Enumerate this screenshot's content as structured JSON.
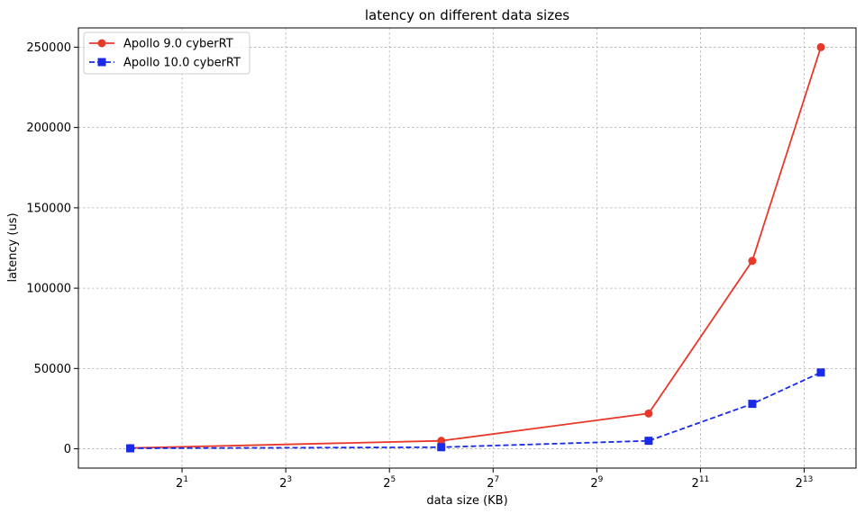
{
  "chart_data": {
    "type": "line",
    "title": "latency on different data sizes",
    "xlabel": "data size (KB)",
    "ylabel": "latency (us)",
    "x_scale": "log2",
    "x_ticks": [
      2,
      8,
      32,
      128,
      512,
      2048,
      8192
    ],
    "x_tick_labels": [
      {
        "base": "2",
        "exp": "1"
      },
      {
        "base": "2",
        "exp": "3"
      },
      {
        "base": "2",
        "exp": "5"
      },
      {
        "base": "2",
        "exp": "7"
      },
      {
        "base": "2",
        "exp": "9"
      },
      {
        "base": "2",
        "exp": "11"
      },
      {
        "base": "2",
        "exp": "13"
      }
    ],
    "y_ticks": [
      0,
      50000,
      100000,
      150000,
      200000,
      250000
    ],
    "y_tick_labels": [
      "0",
      "50000",
      "100000",
      "150000",
      "200000",
      "250000"
    ],
    "ylim": [
      -12000,
      262000
    ],
    "xlim": [
      0.5,
      16384
    ],
    "grid": true,
    "legend_position": "top-left",
    "x": [
      1,
      64,
      1024,
      4096,
      10240
    ],
    "series": [
      {
        "name": "Apollo 9.0 cyberRT",
        "color": "#e8382a",
        "line_style": "solid",
        "marker": "circle",
        "values": [
          500,
          5000,
          22000,
          117000,
          250000
        ]
      },
      {
        "name": "Apollo 10.0 cyberRT",
        "color": "#1a2be8",
        "line_style": "dashed",
        "marker": "square",
        "values": [
          300,
          1000,
          5000,
          28000,
          47500
        ]
      }
    ]
  }
}
